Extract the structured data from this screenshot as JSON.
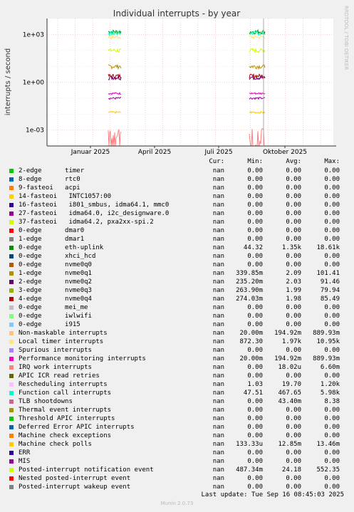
{
  "chart_data": {
    "type": "line",
    "title": "Individual interrupts - by year",
    "ylabel": "interrupts / second",
    "yscale": "log",
    "ylim": [
      0.0001,
      10000
    ],
    "yticks": [
      "1e+03",
      "1e+00",
      "1e-03"
    ],
    "xticks": [
      "Januar 2025",
      "April 2025",
      "Juli 2025",
      "Oktober 2025"
    ],
    "grid": true,
    "bursts": [
      {
        "label": "late Dec 2024 – mid Jan 2025"
      },
      {
        "label": "mid Aug – mid Sep 2025"
      }
    ]
  },
  "watermark": "RRDTOOL / TOBI OETIKER",
  "legend_header": {
    "cur": "Cur:",
    "min": "Min:",
    "avg": "Avg:",
    "max": "Max:"
  },
  "legend": [
    {
      "label": "2-edge      timer",
      "color": "#00cc00",
      "cur": "nan",
      "min": "0.00",
      "avg": "0.00",
      "max": "0.00"
    },
    {
      "label": "8-edge      rtc0",
      "color": "#0066b3",
      "cur": "nan",
      "min": "0.00",
      "avg": "0.00",
      "max": "0.00"
    },
    {
      "label": "9-fasteoi   acpi",
      "color": "#ff8000",
      "cur": "nan",
      "min": "0.00",
      "avg": "0.00",
      "max": "0.00"
    },
    {
      "label": "14-fasteoi   INTC1057:00",
      "color": "#ffcc00",
      "cur": "nan",
      "min": "0.00",
      "avg": "0.00",
      "max": "0.00"
    },
    {
      "label": "16-fasteoi   i801_smbus, idma64.1, mmc0",
      "color": "#330099",
      "cur": "nan",
      "min": "0.00",
      "avg": "0.00",
      "max": "0.00"
    },
    {
      "label": "27-fasteoi   idma64.0, i2c_designware.0",
      "color": "#990099",
      "cur": "nan",
      "min": "0.00",
      "avg": "0.00",
      "max": "0.00"
    },
    {
      "label": "37-fasteoi   idma64.2, pxa2xx-spi.2",
      "color": "#ccff00",
      "cur": "nan",
      "min": "0.00",
      "avg": "0.00",
      "max": "0.00"
    },
    {
      "label": "0-edge      dmar0",
      "color": "#ff0000",
      "cur": "nan",
      "min": "0.00",
      "avg": "0.00",
      "max": "0.00"
    },
    {
      "label": "1-edge      dmar1",
      "color": "#808080",
      "cur": "nan",
      "min": "0.00",
      "avg": "0.00",
      "max": "0.00"
    },
    {
      "label": "0-edge      eth-uplink",
      "color": "#008f00",
      "cur": "nan",
      "min": "44.32",
      "avg": "1.35k",
      "max": "18.61k"
    },
    {
      "label": "0-edge      xhci_hcd",
      "color": "#00487d",
      "cur": "nan",
      "min": "0.00",
      "avg": "0.00",
      "max": "0.00"
    },
    {
      "label": "0-edge      nvme0q0",
      "color": "#b35a00",
      "cur": "nan",
      "min": "0.00",
      "avg": "0.00",
      "max": "0.00"
    },
    {
      "label": "1-edge      nvme0q1",
      "color": "#b38f00",
      "cur": "nan",
      "min": "339.85m",
      "avg": "2.09",
      "max": "101.41"
    },
    {
      "label": "2-edge      nvme0q2",
      "color": "#6b006b",
      "cur": "nan",
      "min": "235.20m",
      "avg": "2.03",
      "max": "91.46"
    },
    {
      "label": "3-edge      nvme0q3",
      "color": "#8fb300",
      "cur": "nan",
      "min": "263.90m",
      "avg": "1.99",
      "max": "79.94"
    },
    {
      "label": "4-edge      nvme0q4",
      "color": "#b30000",
      "cur": "nan",
      "min": "274.03m",
      "avg": "1.98",
      "max": "85.49"
    },
    {
      "label": "0-edge      mei_me",
      "color": "#bebebe",
      "cur": "nan",
      "min": "0.00",
      "avg": "0.00",
      "max": "0.00"
    },
    {
      "label": "0-edge      iwlwifi",
      "color": "#80ff80",
      "cur": "nan",
      "min": "0.00",
      "avg": "0.00",
      "max": "0.00"
    },
    {
      "label": "0-edge      i915",
      "color": "#80c9ff",
      "cur": "nan",
      "min": "0.00",
      "avg": "0.00",
      "max": "0.00"
    },
    {
      "label": "Non-maskable interrupts",
      "color": "#ffc080",
      "cur": "nan",
      "min": "20.00m",
      "avg": "194.92m",
      "max": "889.93m"
    },
    {
      "label": "Local timer interrupts",
      "color": "#ffe680",
      "cur": "nan",
      "min": "872.30",
      "avg": "1.97k",
      "max": "10.95k"
    },
    {
      "label": "Spurious interrupts",
      "color": "#aa80ff",
      "cur": "nan",
      "min": "0.00",
      "avg": "0.00",
      "max": "0.00"
    },
    {
      "label": "Performance monitoring interrupts",
      "color": "#ee00cc",
      "cur": "nan",
      "min": "20.00m",
      "avg": "194.92m",
      "max": "889.93m"
    },
    {
      "label": "IRQ work interrupts",
      "color": "#ff8080",
      "cur": "nan",
      "min": "0.00",
      "avg": "18.02u",
      "max": "6.60m"
    },
    {
      "label": "APIC ICR read retries",
      "color": "#666600",
      "cur": "nan",
      "min": "0.00",
      "avg": "0.00",
      "max": "0.00"
    },
    {
      "label": "Rescheduling interrupts",
      "color": "#ffbfff",
      "cur": "nan",
      "min": "1.03",
      "avg": "19.70",
      "max": "1.20k"
    },
    {
      "label": "Function call interrupts",
      "color": "#00ffcc",
      "cur": "nan",
      "min": "47.51",
      "avg": "467.65",
      "max": "5.98k"
    },
    {
      "label": "TLB shootdowns",
      "color": "#cc6699",
      "cur": "nan",
      "min": "0.00",
      "avg": "43.40m",
      "max": "8.38"
    },
    {
      "label": "Thermal event interrupts",
      "color": "#999900",
      "cur": "nan",
      "min": "0.00",
      "avg": "0.00",
      "max": "0.00"
    },
    {
      "label": "Threshold APIC interrupts",
      "color": "#00cc00",
      "cur": "nan",
      "min": "0.00",
      "avg": "0.00",
      "max": "0.00"
    },
    {
      "label": "Deferred Error APIC interrupts",
      "color": "#0066b3",
      "cur": "nan",
      "min": "0.00",
      "avg": "0.00",
      "max": "0.00"
    },
    {
      "label": "Machine check exceptions",
      "color": "#ff8000",
      "cur": "nan",
      "min": "0.00",
      "avg": "0.00",
      "max": "0.00"
    },
    {
      "label": "Machine check polls",
      "color": "#ffcc00",
      "cur": "nan",
      "min": "133.33u",
      "avg": "12.85m",
      "max": "13.46m"
    },
    {
      "label": "ERR",
      "color": "#330099",
      "cur": "nan",
      "min": "0.00",
      "avg": "0.00",
      "max": "0.00"
    },
    {
      "label": "MIS",
      "color": "#990099",
      "cur": "nan",
      "min": "0.00",
      "avg": "0.00",
      "max": "0.00"
    },
    {
      "label": "Posted-interrupt notification event",
      "color": "#ccff00",
      "cur": "nan",
      "min": "487.34m",
      "avg": "24.18",
      "max": "552.35"
    },
    {
      "label": "Nested posted-interrupt event",
      "color": "#ff0000",
      "cur": "nan",
      "min": "0.00",
      "avg": "0.00",
      "max": "0.00"
    },
    {
      "label": "Posted-interrupt wakeup event",
      "color": "#808080",
      "cur": "nan",
      "min": "0.00",
      "avg": "0.00",
      "max": "0.00"
    }
  ],
  "last_update": "Last update: Tue Sep 16 08:45:03 2025",
  "version": "Munin 2.0.73"
}
